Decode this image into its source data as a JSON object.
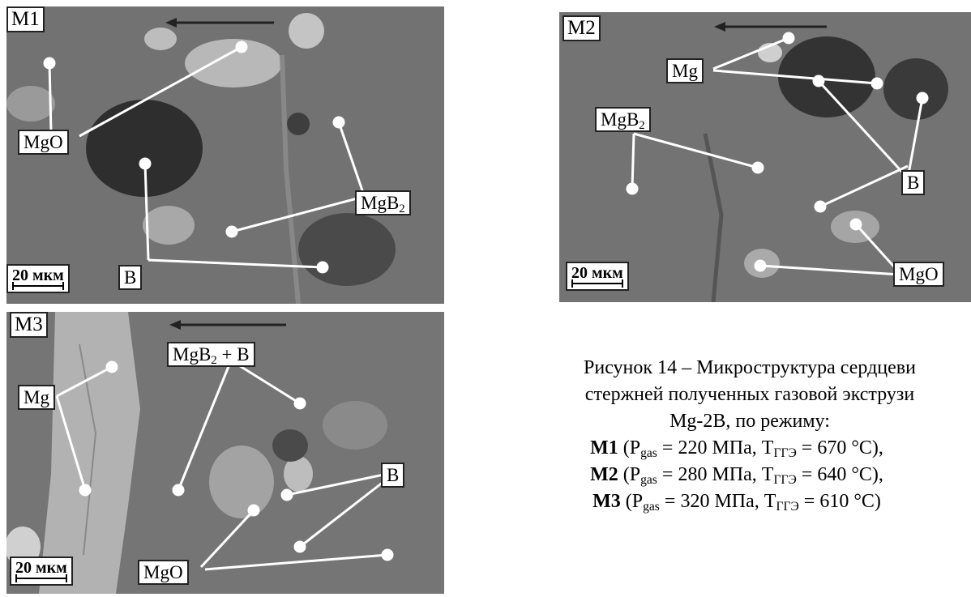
{
  "panels": {
    "m1": {
      "tag": "M1",
      "scale": "20 мкм",
      "label_mgo": "MgO",
      "label_mgb2": "MgB",
      "label_b": "B"
    },
    "m2": {
      "tag": "M2",
      "scale": "20 мкм",
      "label_mg": "Mg",
      "label_mgb2": "MgB",
      "label_b": "B",
      "label_mgo": "MgO"
    },
    "m3": {
      "tag": "M3",
      "scale": "20 мкм",
      "label_mgb2b": "MgB",
      "label_mgb2b_suffix": " + B",
      "label_mg": "Mg",
      "label_b": "B",
      "label_mgo": "MgO"
    },
    "sub2": "2"
  },
  "caption": {
    "line1": "Рисунок 14 – Микроструктура сердцеви",
    "line2": "стержней полученных газовой экструзи",
    "line3": "Mg-2B, по режиму:",
    "rows": [
      {
        "key": "M1",
        "p": "220 МПа",
        "t": "670 °C),"
      },
      {
        "key": "M2",
        "p": "280 МПа",
        "t": "640 °C),"
      },
      {
        "key": "M3",
        "p": "320 МПа",
        "t": "610 °C)"
      }
    ],
    "p_prefix": "P",
    "p_sub": "gas",
    "t_prefix": "T",
    "t_sub": "ГГЭ"
  }
}
